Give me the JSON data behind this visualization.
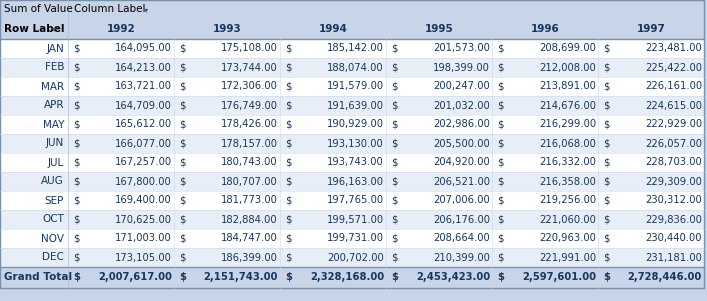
{
  "title_cell": "Sum of Value",
  "column_label_header": "Column Label",
  "row_label_header": "Row Label",
  "years": [
    "1992",
    "1993",
    "1994",
    "1995",
    "1996",
    "1997"
  ],
  "months": [
    "JAN",
    "FEB",
    "MAR",
    "APR",
    "MAY",
    "JUN",
    "JUL",
    "AUG",
    "SEP",
    "OCT",
    "NOV",
    "DEC"
  ],
  "data": [
    [
      164095,
      175108,
      185142,
      201573,
      208699,
      223481
    ],
    [
      164213,
      173744,
      188074,
      198399,
      212008,
      225422
    ],
    [
      163721,
      172306,
      191579,
      200247,
      213891,
      226161
    ],
    [
      164709,
      176749,
      191639,
      201032,
      214676,
      224615
    ],
    [
      165612,
      178426,
      190929,
      202986,
      216299,
      222929
    ],
    [
      166077,
      178157,
      193130,
      205500,
      216068,
      226057
    ],
    [
      167257,
      180743,
      193743,
      204920,
      216332,
      228703
    ],
    [
      167800,
      180707,
      196163,
      206521,
      216358,
      229309
    ],
    [
      169400,
      181773,
      197765,
      207006,
      219256,
      230312
    ],
    [
      170625,
      182884,
      199571,
      206176,
      221060,
      229836
    ],
    [
      171003,
      184747,
      199731,
      208664,
      220963,
      230440
    ],
    [
      173105,
      186399,
      200702,
      210399,
      221991,
      231181
    ]
  ],
  "grand_totals": [
    2007617,
    2151743,
    2328168,
    2453423,
    2597601,
    2728446
  ],
  "header_bg": "#C8D4E8",
  "data_bg_white": "#FFFFFF",
  "data_bg_blue": "#E8EEF7",
  "grand_total_bg": "#C8D4E8",
  "month_color": "#17375E",
  "year_color": "#17375E",
  "grand_total_text": "#17375E",
  "header_text_color": "#000000",
  "border_color": "#9BACC8"
}
